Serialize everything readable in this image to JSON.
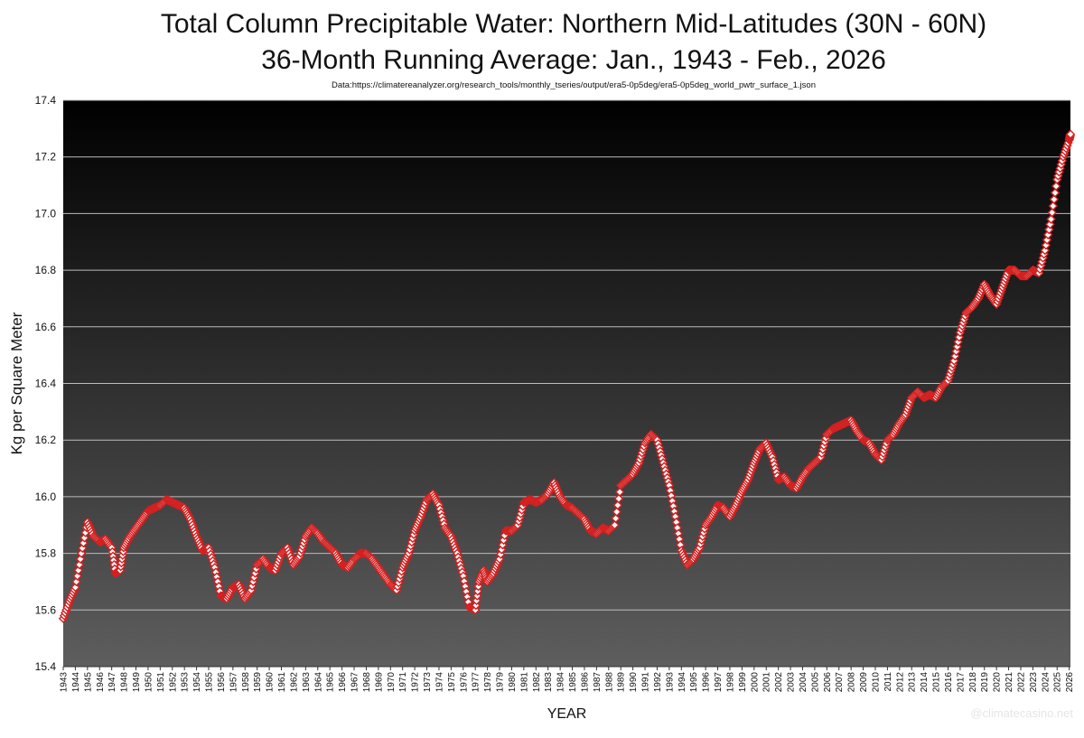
{
  "chart_data": {
    "type": "line",
    "title": "Total Column Precipitable Water: Northern Mid-Latitudes (30N - 60N)",
    "subtitle": "36-Month Running Average: Jan., 1943 - Feb., 2026",
    "source_note": "Data:https://climatereanalyzer.org/research_tools/monthly_tseries/output/era5-0p5deg/era5-0p5deg_world_pwtr_surface_1.json",
    "xlabel": "YEAR",
    "ylabel": "Kg per Square Meter",
    "ylim": [
      15.4,
      17.4
    ],
    "y_ticks": [
      "15.4",
      "15.6",
      "15.8",
      "16.0",
      "16.2",
      "16.4",
      "16.6",
      "16.8",
      "17.0",
      "17.2",
      "17.4"
    ],
    "x_tick_labels": [
      "1943",
      "1944",
      "1945",
      "1946",
      "1947",
      "1948",
      "1949",
      "1950",
      "1951",
      "1952",
      "1953",
      "1954",
      "1955",
      "1956",
      "1957",
      "1958",
      "1959",
      "1960",
      "1961",
      "1962",
      "1963",
      "1964",
      "1965",
      "1966",
      "1967",
      "1968",
      "1969",
      "1970",
      "1971",
      "1972",
      "1973",
      "1974",
      "1975",
      "1976",
      "1977",
      "1978",
      "1979",
      "1980",
      "1981",
      "1982",
      "1983",
      "1984",
      "1985",
      "1986",
      "1987",
      "1988",
      "1989",
      "1990",
      "1991",
      "1992",
      "1993",
      "1994",
      "1995",
      "1996",
      "1997",
      "1998",
      "1999",
      "2000",
      "2001",
      "2002",
      "2003",
      "2004",
      "2005",
      "2006",
      "2007",
      "2008",
      "2009",
      "2010",
      "2011",
      "2012",
      "2013",
      "2014",
      "2015",
      "2016",
      "2017",
      "2018",
      "2019",
      "2020",
      "2021",
      "2022",
      "2023",
      "2024",
      "2025",
      "2026"
    ],
    "grid": true,
    "marker": "diamond",
    "colors": {
      "marker_fill": "#ffffff",
      "marker_stroke": "#d42020",
      "plot_bg_top": "#000000",
      "plot_bg_bottom": "#5e5e5e",
      "gridline": "#bdbdbd"
    },
    "series": [
      {
        "x": [
          1943.0,
          1943.5,
          1944.0,
          1944.5,
          1945.0,
          1945.5,
          1946.0,
          1946.5,
          1947.0,
          1947.3,
          1947.7,
          1948.0,
          1948.5,
          1949.0,
          1949.5,
          1950.0,
          1950.5,
          1951.0,
          1951.5,
          1952.0,
          1952.5,
          1953.0,
          1953.5,
          1954.0,
          1954.5,
          1955.0,
          1955.5,
          1956.0,
          1956.5,
          1957.0,
          1957.5,
          1958.0,
          1958.5,
          1959.0,
          1959.5,
          1960.0,
          1960.5,
          1961.0,
          1961.5,
          1962.0,
          1962.5,
          1963.0,
          1963.5,
          1964.0,
          1964.5,
          1965.0,
          1965.5,
          1966.0,
          1966.5,
          1967.0,
          1967.5,
          1968.0,
          1968.5,
          1969.0,
          1969.5,
          1970.0,
          1970.5,
          1971.0,
          1971.5,
          1972.0,
          1972.5,
          1973.0,
          1973.5,
          1974.0,
          1974.5,
          1975.0,
          1975.5,
          1976.0,
          1976.5,
          1977.0,
          1977.3,
          1977.7,
          1978.0,
          1978.5,
          1979.0,
          1979.5,
          1980.0,
          1980.5,
          1981.0,
          1981.5,
          1982.0,
          1982.5,
          1983.0,
          1983.5,
          1984.0,
          1984.5,
          1985.0,
          1985.5,
          1986.0,
          1986.5,
          1987.0,
          1987.5,
          1988.0,
          1988.5,
          1989.0,
          1989.5,
          1990.0,
          1990.5,
          1991.0,
          1991.5,
          1992.0,
          1992.5,
          1993.0,
          1993.5,
          1994.0,
          1994.5,
          1995.0,
          1995.5,
          1996.0,
          1996.5,
          1997.0,
          1997.5,
          1998.0,
          1998.5,
          1999.0,
          1999.5,
          2000.0,
          2000.5,
          2001.0,
          2001.5,
          2002.0,
          2002.5,
          2003.0,
          2003.5,
          2004.0,
          2004.5,
          2005.0,
          2005.5,
          2006.0,
          2006.5,
          2007.0,
          2007.5,
          2008.0,
          2008.5,
          2009.0,
          2009.5,
          2010.0,
          2010.5,
          2011.0,
          2011.5,
          2012.0,
          2012.5,
          2013.0,
          2013.5,
          2014.0,
          2014.5,
          2015.0,
          2015.5,
          2016.0,
          2016.5,
          2017.0,
          2017.5,
          2018.0,
          2018.5,
          2019.0,
          2019.5,
          2020.0,
          2020.5,
          2021.0,
          2021.5,
          2022.0,
          2022.5,
          2023.0,
          2023.5,
          2024.0,
          2024.5,
          2025.0,
          2025.5,
          2026.0,
          2026.1
        ],
        "values": [
          15.57,
          15.63,
          15.68,
          15.8,
          15.91,
          15.86,
          15.84,
          15.85,
          15.82,
          15.73,
          15.74,
          15.82,
          15.86,
          15.89,
          15.92,
          15.95,
          15.96,
          15.97,
          15.99,
          15.98,
          15.97,
          15.96,
          15.92,
          15.86,
          15.81,
          15.82,
          15.75,
          15.65,
          15.64,
          15.68,
          15.69,
          15.64,
          15.67,
          15.76,
          15.78,
          15.75,
          15.74,
          15.8,
          15.82,
          15.76,
          15.79,
          15.86,
          15.89,
          15.87,
          15.84,
          15.82,
          15.8,
          15.76,
          15.75,
          15.78,
          15.8,
          15.8,
          15.78,
          15.75,
          15.72,
          15.69,
          15.67,
          15.75,
          15.8,
          15.88,
          15.93,
          15.99,
          16.01,
          15.97,
          15.89,
          15.86,
          15.8,
          15.72,
          15.61,
          15.6,
          15.7,
          15.74,
          15.7,
          15.73,
          15.78,
          15.88,
          15.88,
          15.9,
          15.98,
          15.99,
          15.98,
          15.99,
          16.01,
          16.05,
          16.0,
          15.97,
          15.96,
          15.94,
          15.92,
          15.88,
          15.87,
          15.89,
          15.88,
          15.9,
          16.04,
          16.06,
          16.08,
          16.12,
          16.19,
          16.22,
          16.2,
          16.12,
          16.04,
          15.93,
          15.81,
          15.76,
          15.78,
          15.82,
          15.9,
          15.93,
          15.97,
          15.96,
          15.93,
          15.97,
          16.02,
          16.06,
          16.12,
          16.17,
          16.19,
          16.14,
          16.06,
          16.07,
          16.04,
          16.03,
          16.07,
          16.1,
          16.12,
          16.14,
          16.22,
          16.24,
          16.25,
          16.26,
          16.27,
          16.23,
          16.2,
          16.19,
          16.15,
          16.13,
          16.2,
          16.22,
          16.26,
          16.29,
          16.35,
          16.37,
          16.35,
          16.36,
          16.35,
          16.39,
          16.41,
          16.48,
          16.58,
          16.65,
          16.67,
          16.7,
          16.75,
          16.71,
          16.68,
          16.74,
          16.8,
          16.8,
          16.78,
          16.78,
          16.8,
          16.79,
          16.87,
          16.98,
          17.12,
          17.2,
          17.26,
          17.28
        ]
      }
    ]
  },
  "watermark": "@climatecasino.net"
}
